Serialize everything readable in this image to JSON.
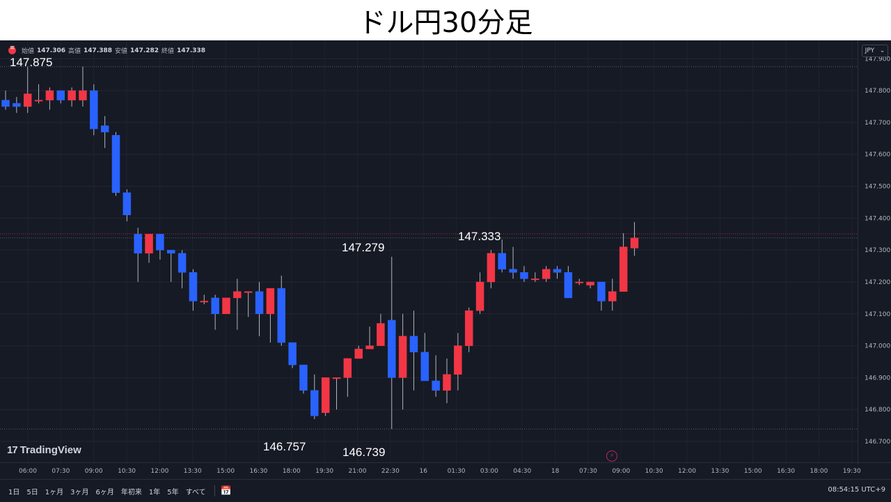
{
  "title": "ドル円30分足",
  "ohlc": {
    "open_label": "始値",
    "open": "147.306",
    "high_label": "高値",
    "high": "147.388",
    "low_label": "安値",
    "low": "147.282",
    "close_label": "終値",
    "close": "147.338"
  },
  "currency": "JPY",
  "annotations": [
    "147.875",
    "147.279",
    "147.333",
    "146.757",
    "146.739"
  ],
  "logo": "TradingView",
  "timeframes": [
    "1日",
    "5日",
    "1ヶ月",
    "3ヶ月",
    "6ヶ月",
    "年初来",
    "1年",
    "5年",
    "すべて"
  ],
  "clock": "08:54:15 UTC+9",
  "colors": {
    "up": "#f23645",
    "down": "#2962ff",
    "background": "#161a25",
    "text": "#d1d4dc"
  },
  "chart_data": {
    "type": "candlestick",
    "ylim": [
      146.7,
      147.94
    ],
    "y_ticks": [
      "147.900",
      "147.800",
      "147.700",
      "147.600",
      "147.500",
      "147.400",
      "147.300",
      "147.200",
      "147.100",
      "147.000",
      "146.900",
      "146.800",
      "146.700"
    ],
    "x_tick_labels": [
      "06:00",
      "07:30",
      "09:00",
      "10:30",
      "12:00",
      "13:30",
      "15:00",
      "16:30",
      "18:00",
      "19:30",
      "21:00",
      "22:30",
      "16",
      "01:30",
      "03:00",
      "04:30",
      "18",
      "07:30",
      "09:00",
      "10:30",
      "12:00",
      "13:30",
      "15:00",
      "16:30",
      "18:00",
      "19:30"
    ],
    "reference_lines": [
      147.875,
      147.351,
      147.338,
      146.739
    ],
    "candles": [
      [
        147.77,
        147.8,
        147.74,
        147.75
      ],
      [
        147.76,
        147.78,
        147.73,
        147.75
      ],
      [
        147.75,
        147.875,
        147.73,
        147.79
      ],
      [
        147.77,
        147.82,
        147.76,
        147.77
      ],
      [
        147.77,
        147.81,
        147.74,
        147.8
      ],
      [
        147.8,
        147.8,
        147.76,
        147.77
      ],
      [
        147.77,
        147.81,
        147.75,
        147.8
      ],
      [
        147.77,
        147.875,
        147.75,
        147.8
      ],
      [
        147.8,
        147.82,
        147.66,
        147.68
      ],
      [
        147.69,
        147.72,
        147.62,
        147.67
      ],
      [
        147.66,
        147.67,
        147.47,
        147.48
      ],
      [
        147.48,
        147.49,
        147.39,
        147.41
      ],
      [
        147.35,
        147.37,
        147.2,
        147.29
      ],
      [
        147.29,
        147.35,
        147.26,
        147.35
      ],
      [
        147.35,
        147.35,
        147.27,
        147.3
      ],
      [
        147.3,
        147.3,
        147.2,
        147.29
      ],
      [
        147.29,
        147.3,
        147.18,
        147.23
      ],
      [
        147.23,
        147.24,
        147.11,
        147.14
      ],
      [
        147.14,
        147.16,
        147.13,
        147.14
      ],
      [
        147.15,
        147.16,
        147.05,
        147.1
      ],
      [
        147.1,
        147.15,
        147.1,
        147.15
      ],
      [
        147.15,
        147.21,
        147.05,
        147.17
      ],
      [
        147.17,
        147.17,
        147.09,
        147.17
      ],
      [
        147.17,
        147.2,
        147.03,
        147.1
      ],
      [
        147.1,
        147.18,
        147.01,
        147.18
      ],
      [
        147.18,
        147.22,
        147.0,
        147.01
      ],
      [
        147.01,
        147.0,
        146.93,
        146.94
      ],
      [
        146.94,
        146.94,
        146.85,
        146.86
      ],
      [
        146.86,
        146.91,
        146.77,
        146.78
      ],
      [
        146.79,
        146.9,
        146.78,
        146.9
      ],
      [
        146.9,
        146.9,
        146.8,
        146.9
      ],
      [
        146.9,
        146.96,
        146.84,
        146.96
      ],
      [
        146.96,
        147.0,
        146.96,
        146.99
      ],
      [
        146.99,
        147.06,
        146.99,
        147.0
      ],
      [
        147.0,
        147.1,
        147.0,
        147.07
      ],
      [
        147.08,
        147.279,
        146.739,
        146.9
      ],
      [
        146.9,
        147.1,
        146.8,
        147.03
      ],
      [
        147.03,
        147.11,
        146.86,
        146.98
      ],
      [
        146.98,
        147.04,
        146.9,
        146.89
      ],
      [
        146.89,
        146.97,
        146.84,
        146.86
      ],
      [
        146.86,
        146.96,
        146.82,
        146.91
      ],
      [
        146.91,
        147.04,
        146.86,
        147.0
      ],
      [
        147.0,
        147.12,
        146.98,
        147.11
      ],
      [
        147.11,
        147.23,
        147.1,
        147.2
      ],
      [
        147.2,
        147.3,
        147.18,
        147.29
      ],
      [
        147.29,
        147.333,
        147.23,
        147.24
      ],
      [
        147.24,
        147.31,
        147.21,
        147.23
      ],
      [
        147.23,
        147.25,
        147.2,
        147.21
      ],
      [
        147.21,
        147.23,
        147.2,
        147.21
      ],
      [
        147.21,
        147.25,
        147.2,
        147.24
      ],
      [
        147.24,
        147.25,
        147.21,
        147.23
      ],
      [
        147.23,
        147.25,
        147.15,
        147.15
      ],
      [
        147.2,
        147.21,
        147.19,
        147.2
      ],
      [
        147.19,
        147.2,
        147.18,
        147.2
      ],
      [
        147.2,
        147.2,
        147.11,
        147.14
      ],
      [
        147.14,
        147.21,
        147.11,
        147.17
      ],
      [
        147.17,
        147.353,
        147.17,
        147.31
      ],
      [
        147.306,
        147.388,
        147.282,
        147.338
      ]
    ]
  }
}
